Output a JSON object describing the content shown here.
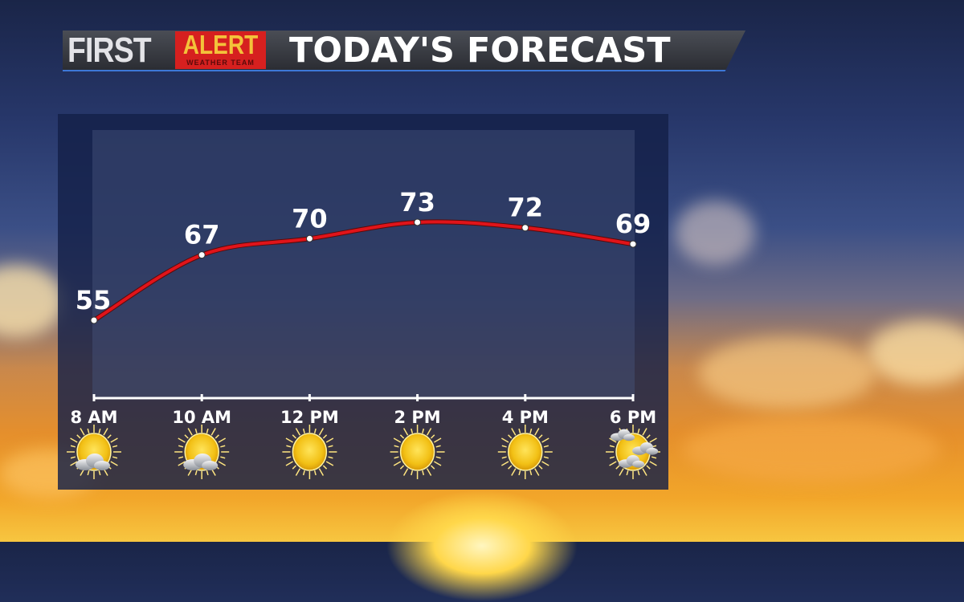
{
  "header": {
    "logo_first": "FIRST",
    "logo_alert": "ALERT",
    "logo_sub": "WEATHER TEAM",
    "title": "TODAY'S FORECAST"
  },
  "colors": {
    "line": "#e0141a",
    "alert_red": "#d6201f",
    "alert_yellow": "#f3c23a"
  },
  "chart_data": {
    "type": "line",
    "title": "TODAY'S FORECAST",
    "categories": [
      "8 AM",
      "10 AM",
      "12 PM",
      "2 PM",
      "4 PM",
      "6 PM"
    ],
    "values": [
      55,
      67,
      70,
      73,
      72,
      69
    ],
    "value_labels": [
      "55",
      "67",
      "70",
      "73",
      "72",
      "69"
    ],
    "icons": [
      "partly-sunny-icon",
      "partly-sunny-icon",
      "sunny-icon",
      "sunny-icon",
      "sunny-icon",
      "mostly-sunny-icon"
    ],
    "grid": false,
    "legend": "none"
  }
}
